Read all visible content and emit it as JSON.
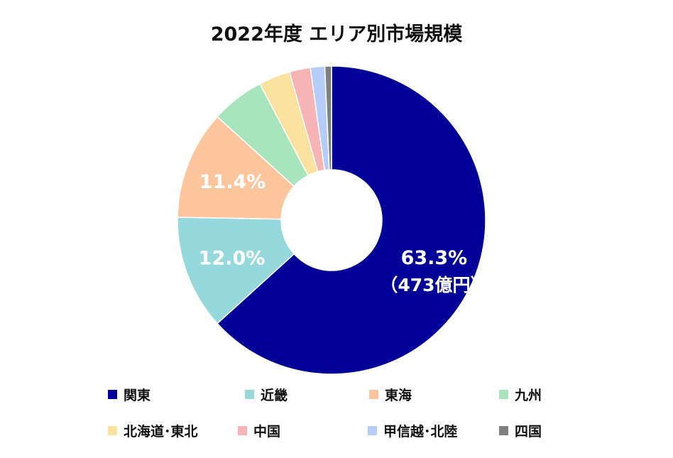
{
  "chart_data": {
    "type": "pie",
    "variant": "donut",
    "title": "2022年度 エリア別市場規模",
    "slices": [
      {
        "name": "関東",
        "value": 63.3,
        "color": "#000099",
        "label": "63.3%",
        "sublabel": "（473億円）"
      },
      {
        "name": "近畿",
        "value": 12.0,
        "color": "#95D9DD",
        "label": "12.0%"
      },
      {
        "name": "東海",
        "value": 11.4,
        "color": "#FDC59C",
        "label": "11.4%"
      },
      {
        "name": "九州",
        "value": 5.6,
        "color": "#A8E4BC"
      },
      {
        "name": "北海道･東北",
        "value": 3.3,
        "color": "#FBE29E"
      },
      {
        "name": "中国",
        "value": 2.2,
        "color": "#F6B4B4"
      },
      {
        "name": "甲信越･北陸",
        "value": 1.5,
        "color": "#B5CDF8"
      },
      {
        "name": "四国",
        "value": 0.7,
        "color": "#808080"
      }
    ],
    "legend_position": "bottom"
  }
}
